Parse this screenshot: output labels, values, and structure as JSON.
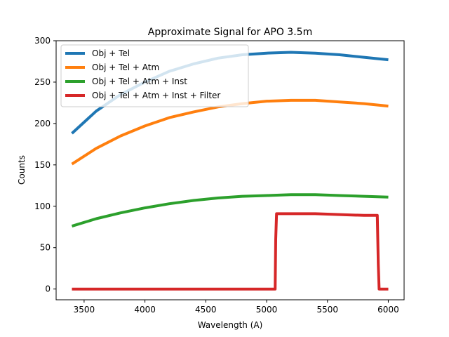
{
  "chart_data": {
    "type": "line",
    "title": "Approximate Signal for APO 3.5m",
    "xlabel": "Wavelength (A)",
    "ylabel": "Counts",
    "xlim": [
      3270,
      6130
    ],
    "ylim": [
      -13,
      300
    ],
    "xticks": [
      3500,
      4000,
      4500,
      5000,
      5500,
      6000
    ],
    "yticks": [
      0,
      50,
      100,
      150,
      200,
      250,
      300
    ],
    "legend_position": "top-left",
    "grid": false,
    "series": [
      {
        "name": "Obj + Tel",
        "color": "#1f77b4",
        "x": [
          3400,
          3600,
          3800,
          4000,
          4200,
          4400,
          4600,
          4800,
          5000,
          5200,
          5400,
          5600,
          5800,
          6000
        ],
        "y": [
          188,
          215,
          235,
          250,
          263,
          272,
          279,
          283,
          285,
          286,
          285,
          283,
          280,
          277
        ]
      },
      {
        "name": "Obj + Tel + Atm",
        "color": "#ff7f0e",
        "x": [
          3400,
          3600,
          3800,
          4000,
          4200,
          4400,
          4600,
          4800,
          5000,
          5200,
          5400,
          5600,
          5800,
          6000
        ],
        "y": [
          151,
          170,
          185,
          197,
          207,
          214,
          220,
          224,
          227,
          228,
          228,
          226,
          224,
          221
        ]
      },
      {
        "name": "Obj + Tel + Atm + Inst",
        "color": "#2ca02c",
        "x": [
          3400,
          3600,
          3800,
          4000,
          4200,
          4400,
          4600,
          4800,
          5000,
          5200,
          5400,
          5600,
          5800,
          6000
        ],
        "y": [
          76,
          85,
          92,
          98,
          103,
          107,
          110,
          112,
          113,
          114,
          114,
          113,
          112,
          111
        ]
      },
      {
        "name": "Obj + Tel + Atm + Inst + Filter",
        "color": "#d62728",
        "x": [
          3400,
          5070,
          5075,
          5082,
          5200,
          5400,
          5600,
          5800,
          5910,
          5918,
          5925,
          6000
        ],
        "y": [
          0,
          0,
          60,
          91,
          91,
          91,
          90,
          89,
          89,
          30,
          0,
          0
        ]
      }
    ]
  }
}
